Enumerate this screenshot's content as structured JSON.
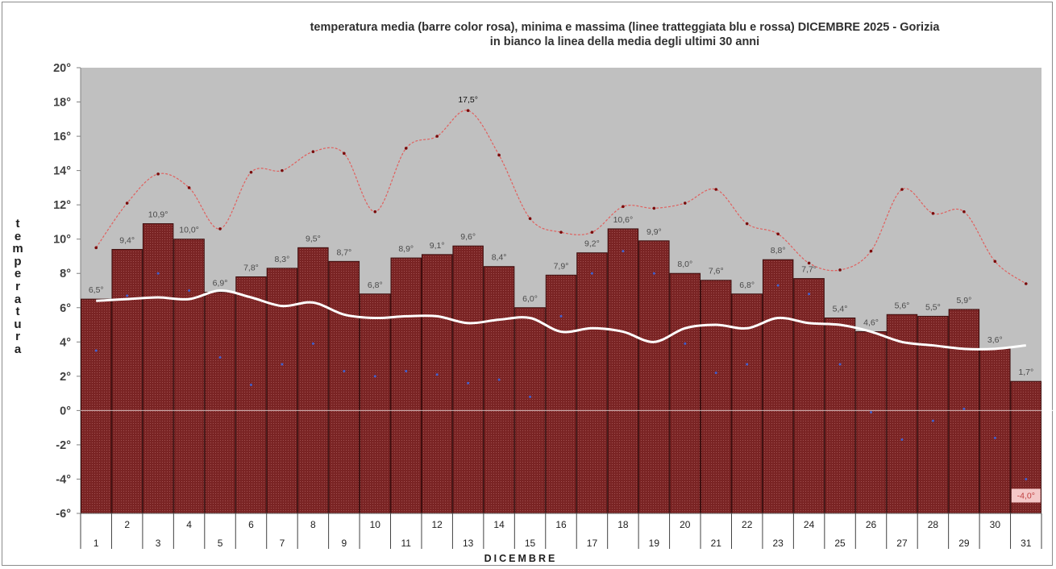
{
  "chart_data": {
    "type": "bar",
    "title": "temperatura media (barre color rosa), minima e massima (linee tratteggiata blu e rossa)  DICEMBRE 2025 - Gorizia",
    "subtitle": "in bianco la linea della media degli ultimi 30 anni",
    "xlabel": "DICEMBRE",
    "ylabel": "temperatura",
    "ylim": [
      -6,
      20
    ],
    "ytick_step": 2,
    "ytick_suffix": "°",
    "categories": [
      "1",
      "2",
      "3",
      "4",
      "5",
      "6",
      "7",
      "8",
      "9",
      "10",
      "11",
      "12",
      "13",
      "14",
      "15",
      "16",
      "17",
      "18",
      "19",
      "20",
      "21",
      "22",
      "23",
      "24",
      "25",
      "26",
      "27",
      "28",
      "29",
      "30",
      "31"
    ],
    "series": [
      {
        "values": [
          6.5,
          9.4,
          10.9,
          10.0,
          6.9,
          7.8,
          8.3,
          9.5,
          8.7,
          6.8,
          8.9,
          9.1,
          9.6,
          8.4,
          6.0,
          7.9,
          9.2,
          10.6,
          9.9,
          8.0,
          7.6,
          6.8,
          8.8,
          7.7,
          5.4,
          4.6,
          5.6,
          5.5,
          5.9,
          3.6,
          1.7
        ],
        "labels": [
          "6,5°",
          "9,4°",
          "10,9°",
          "10,0°",
          "6,9°",
          "7,8°",
          "8,3°",
          "9,5°",
          "8,7°",
          "6,8°",
          "8,9°",
          "9,1°",
          "9,6°",
          "8,4°",
          "6,0°",
          "7,9°",
          "9,2°",
          "10,6°",
          "9,9°",
          "8,0°",
          "7,6°",
          "6,8°",
          "8,8°",
          "7,7°",
          "5,4°",
          "4,6°",
          "5,6°",
          "5,5°",
          "5,9°",
          "3,6°",
          "1,7°"
        ]
      },
      {
        "values": [
          9.5,
          12.1,
          13.8,
          13.0,
          10.6,
          13.9,
          14.0,
          15.1,
          15.0,
          11.6,
          15.3,
          16.0,
          17.5,
          14.9,
          11.2,
          10.4,
          10.4,
          11.9,
          11.8,
          12.1,
          12.9,
          10.9,
          10.3,
          8.6,
          8.2,
          9.3,
          12.9,
          11.5,
          11.6,
          8.7,
          7.4
        ]
      },
      {
        "values": [
          3.5,
          6.7,
          8.0,
          7.0,
          3.1,
          1.5,
          2.7,
          3.9,
          2.3,
          2.0,
          2.3,
          2.1,
          1.6,
          1.8,
          0.8,
          5.5,
          8.0,
          9.3,
          8.0,
          3.9,
          2.2,
          2.7,
          7.3,
          6.8,
          2.7,
          -0.1,
          -1.7,
          -0.6,
          0.1,
          -1.6,
          -4.0
        ]
      },
      {
        "values": [
          6.4,
          6.5,
          6.6,
          6.5,
          7.0,
          6.6,
          6.1,
          6.3,
          5.6,
          5.4,
          5.5,
          5.5,
          5.1,
          5.3,
          5.4,
          4.6,
          4.8,
          4.6,
          4.0,
          4.8,
          5.0,
          4.8,
          5.4,
          5.1,
          5.0,
          4.6,
          4.0,
          3.8,
          3.6,
          3.6,
          3.8
        ]
      }
    ],
    "max_label": "17,5°",
    "min_label": "-4,0°",
    "colors": {
      "bar": "#7a2424",
      "bar_edge": "#3c0c0c",
      "plot_bg": "#c0c0c0",
      "max_line": "#e0605e",
      "min_dots": "#4060d0",
      "avg_line": "#ffffff"
    },
    "grid": false,
    "legend": "none"
  }
}
